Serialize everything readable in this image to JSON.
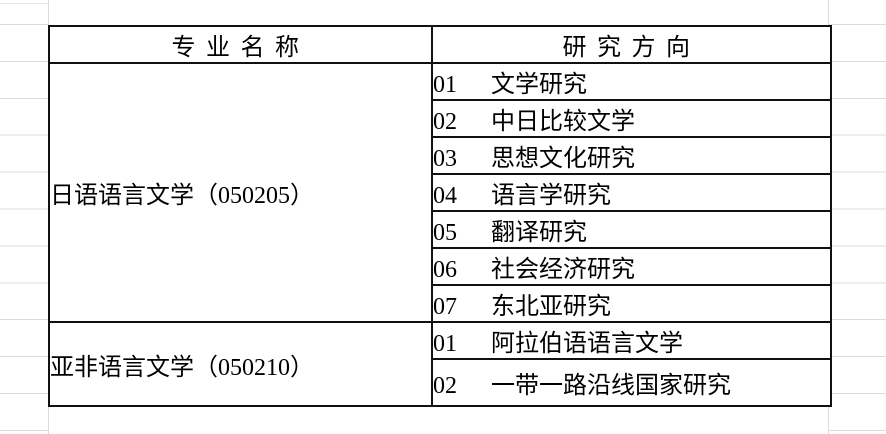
{
  "table": {
    "headers": {
      "major": "专业名称",
      "direction": "研究方向"
    },
    "groups": [
      {
        "major": "日语语言文学（050205）",
        "directions": [
          {
            "code": "01",
            "label": "文学研究"
          },
          {
            "code": "02",
            "label": "中日比较文学"
          },
          {
            "code": "03",
            "label": "思想文化研究"
          },
          {
            "code": "04",
            "label": "语言学研究"
          },
          {
            "code": "05",
            "label": "翻译研究"
          },
          {
            "code": "06",
            "label": "社会经济研究"
          },
          {
            "code": "07",
            "label": "东北亚研究"
          }
        ]
      },
      {
        "major": "亚非语言文学（050210）",
        "directions": [
          {
            "code": "01",
            "label": "阿拉伯语语言文学"
          },
          {
            "code": "02",
            "label": "一带一路沿线国家研究"
          }
        ]
      }
    ]
  },
  "colors": {
    "border": "#111111",
    "gridline": "#dcdcdc",
    "text": "#000000",
    "background": "#ffffff"
  }
}
